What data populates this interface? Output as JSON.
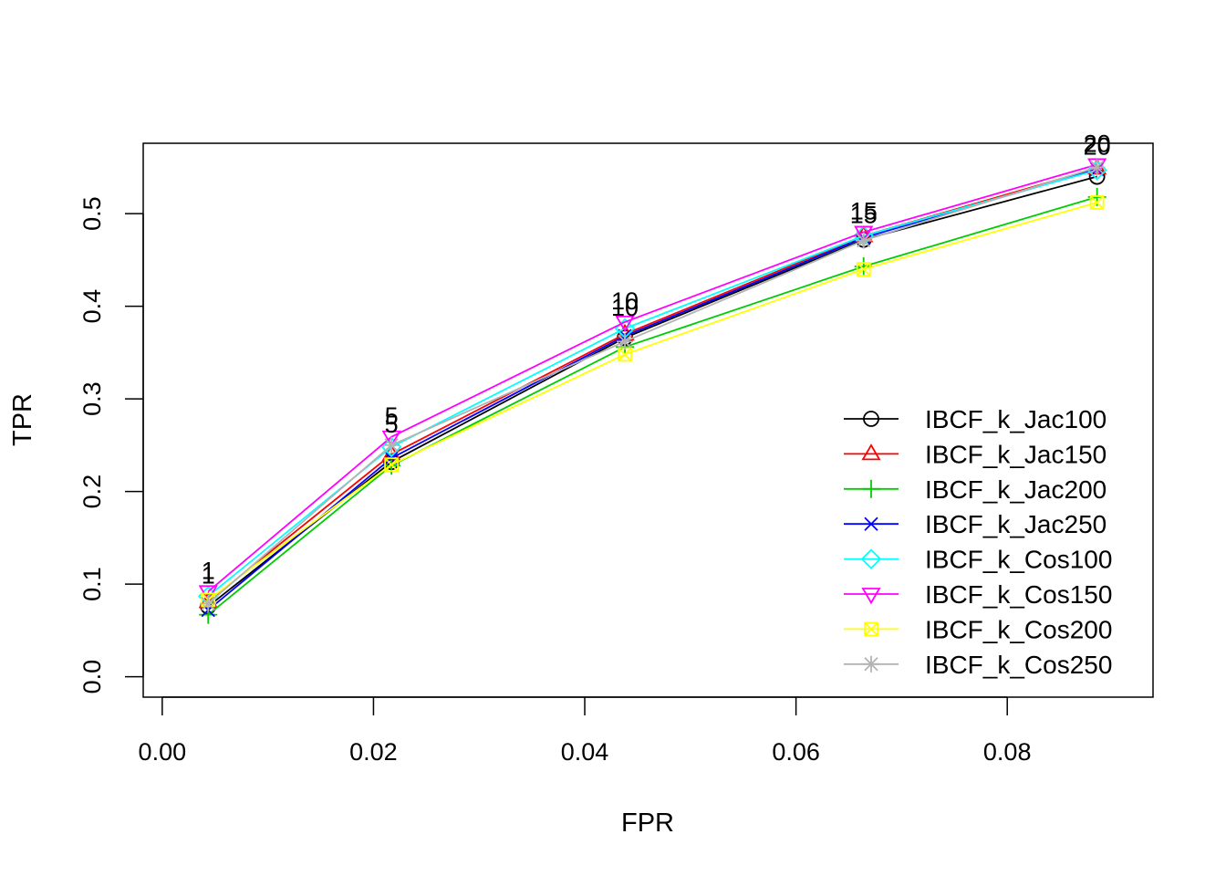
{
  "chart_data": {
    "type": "line",
    "title": "",
    "xlabel": "FPR",
    "ylabel": "TPR",
    "xlim": [
      -0.0018,
      0.0938
    ],
    "ylim": [
      -0.022,
      0.576
    ],
    "grid": false,
    "legend_position": "bottom-right",
    "x_ticks": [
      0.0,
      0.02,
      0.04,
      0.06,
      0.08
    ],
    "x_tick_labels": [
      "0.00",
      "0.02",
      "0.04",
      "0.06",
      "0.08"
    ],
    "y_ticks": [
      0.0,
      0.1,
      0.2,
      0.3,
      0.4,
      0.5
    ],
    "y_tick_labels": [
      "0.0",
      "0.1",
      "0.2",
      "0.3",
      "0.4",
      "0.5"
    ],
    "point_labels": [
      "1",
      "5",
      "10",
      "15",
      "20"
    ],
    "series": [
      {
        "name": "IBCF_k_Jac100",
        "color": "#000000",
        "marker": "circle",
        "x": [
          0.00435,
          0.0217,
          0.0438,
          0.0664,
          0.0885
        ],
        "y": [
          0.076,
          0.232,
          0.366,
          0.472,
          0.54
        ]
      },
      {
        "name": "IBCF_k_Jac150",
        "color": "#ff0000",
        "marker": "triangle",
        "x": [
          0.00435,
          0.0217,
          0.0438,
          0.0664,
          0.0885
        ],
        "y": [
          0.081,
          0.24,
          0.37,
          0.476,
          0.549
        ]
      },
      {
        "name": "IBCF_k_Jac200",
        "color": "#00cd00",
        "marker": "plus",
        "x": [
          0.00435,
          0.0217,
          0.0438,
          0.0664,
          0.0885
        ],
        "y": [
          0.067,
          0.228,
          0.356,
          0.443,
          0.518
        ]
      },
      {
        "name": "IBCF_k_Jac250",
        "color": "#0000ff",
        "marker": "cross",
        "x": [
          0.00435,
          0.0217,
          0.0438,
          0.0664,
          0.0885
        ],
        "y": [
          0.072,
          0.236,
          0.368,
          0.474,
          0.548
        ]
      },
      {
        "name": "IBCF_k_Cos100",
        "color": "#00ffff",
        "marker": "diamond",
        "x": [
          0.00435,
          0.0217,
          0.0438,
          0.0664,
          0.0885
        ],
        "y": [
          0.087,
          0.248,
          0.376,
          0.476,
          0.547
        ]
      },
      {
        "name": "IBCF_k_Cos150",
        "color": "#ff00ff",
        "marker": "triangle-down",
        "x": [
          0.00435,
          0.0217,
          0.0438,
          0.0664,
          0.0885
        ],
        "y": [
          0.092,
          0.259,
          0.383,
          0.48,
          0.553
        ]
      },
      {
        "name": "IBCF_k_Cos200",
        "color": "#ffff00",
        "marker": "square-x",
        "x": [
          0.00435,
          0.0217,
          0.0438,
          0.0664,
          0.0885
        ],
        "y": [
          0.083,
          0.229,
          0.348,
          0.44,
          0.512
        ]
      },
      {
        "name": "IBCF_k_Cos250",
        "color": "#b3b3b3",
        "marker": "asterisk",
        "x": [
          0.00435,
          0.0217,
          0.0438,
          0.0664,
          0.0885
        ],
        "y": [
          0.079,
          0.25,
          0.362,
          0.471,
          0.55
        ]
      }
    ]
  }
}
